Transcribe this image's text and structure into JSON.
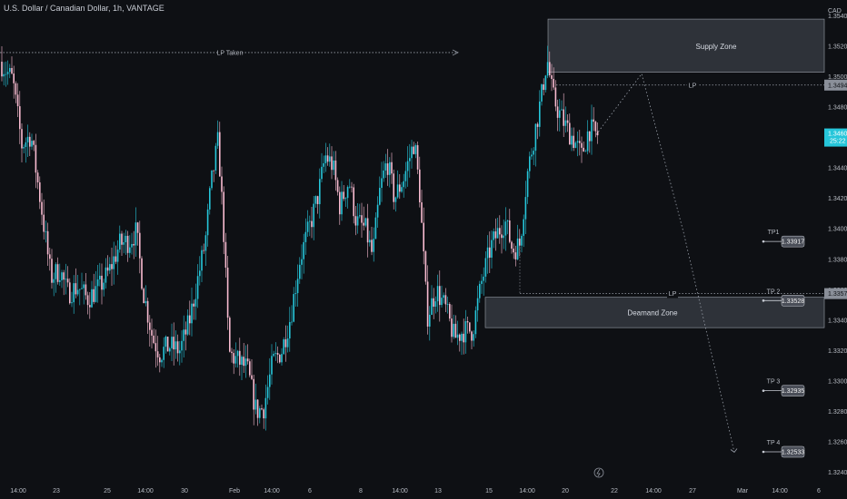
{
  "header": {
    "symbol": "U.S. Dollar / Canadian Dollar, 1h, VANTAGE",
    "currency": "CAD"
  },
  "colors": {
    "background": "#0e1014",
    "up": "#26c6da",
    "down": "#f8bbd0",
    "zone_fill": "#3a3d46",
    "zone_border": "#9aa0aa",
    "dotted": "#9aa0aa",
    "price_tag": "#26c6da",
    "tp_tag": "#4a4e58"
  },
  "chart_data": {
    "type": "candlestick",
    "ylim": [
      1.3233,
      1.3547
    ],
    "y_ticks": [
      "1.35400",
      "1.35200",
      "1.35000",
      "1.34800",
      "1.34400",
      "1.34200",
      "1.34000",
      "1.33800",
      "1.33600",
      "1.33400",
      "1.33200",
      "1.33000",
      "1.32800",
      "1.32600",
      "1.32400"
    ],
    "x_ticks": [
      "14:00",
      "23",
      "25",
      "14:00",
      "30",
      "Feb",
      "14:00",
      "6",
      "8",
      "14:00",
      "13",
      "15",
      "14:00",
      "20",
      "22",
      "14:00",
      "27",
      "Mar",
      "14:00",
      "6"
    ],
    "close_path": [
      [
        0,
        1.351
      ],
      [
        14,
        1.3498
      ],
      [
        24,
        1.3455
      ],
      [
        34,
        1.3462
      ],
      [
        46,
        1.3412
      ],
      [
        56,
        1.3368
      ],
      [
        66,
        1.3373
      ],
      [
        74,
        1.3358
      ],
      [
        86,
        1.3362
      ],
      [
        96,
        1.3354
      ],
      [
        110,
        1.3362
      ],
      [
        120,
        1.3372
      ],
      [
        132,
        1.339
      ],
      [
        142,
        1.3392
      ],
      [
        150,
        1.3398
      ],
      [
        158,
        1.3358
      ],
      [
        168,
        1.3328
      ],
      [
        176,
        1.3318
      ],
      [
        186,
        1.3323
      ],
      [
        198,
        1.332
      ],
      [
        208,
        1.3338
      ],
      [
        218,
        1.3368
      ],
      [
        226,
        1.3392
      ],
      [
        232,
        1.3428
      ],
      [
        240,
        1.3458
      ],
      [
        246,
        1.34
      ],
      [
        252,
        1.3318
      ],
      [
        262,
        1.3313
      ],
      [
        272,
        1.3308
      ],
      [
        282,
        1.328
      ],
      [
        290,
        1.3282
      ],
      [
        300,
        1.3312
      ],
      [
        310,
        1.332
      ],
      [
        320,
        1.3343
      ],
      [
        330,
        1.338
      ],
      [
        340,
        1.34
      ],
      [
        350,
        1.3422
      ],
      [
        358,
        1.3448
      ],
      [
        366,
        1.3442
      ],
      [
        374,
        1.3415
      ],
      [
        384,
        1.3432
      ],
      [
        392,
        1.3405
      ],
      [
        402,
        1.34
      ],
      [
        410,
        1.3382
      ],
      [
        418,
        1.3425
      ],
      [
        426,
        1.3445
      ],
      [
        434,
        1.342
      ],
      [
        444,
        1.3433
      ],
      [
        456,
        1.3458
      ],
      [
        462,
        1.3422
      ],
      [
        470,
        1.3342
      ],
      [
        480,
        1.336
      ],
      [
        490,
        1.3348
      ],
      [
        500,
        1.3328
      ],
      [
        510,
        1.3333
      ],
      [
        520,
        1.3333
      ],
      [
        530,
        1.3365
      ],
      [
        540,
        1.3388
      ],
      [
        548,
        1.3398
      ],
      [
        556,
        1.3405
      ],
      [
        564,
        1.3386
      ],
      [
        572,
        1.339
      ],
      [
        580,
        1.3435
      ],
      [
        588,
        1.3462
      ],
      [
        596,
        1.3488
      ],
      [
        602,
        1.3512
      ],
      [
        608,
        1.3488
      ],
      [
        614,
        1.3478
      ],
      [
        622,
        1.3468
      ],
      [
        632,
        1.3458
      ],
      [
        640,
        1.3448
      ],
      [
        648,
        1.3466
      ],
      [
        656,
        1.3462
      ]
    ],
    "projection_path": [
      [
        656,
        1.3462
      ],
      [
        706,
        1.3502
      ],
      [
        752,
        1.3398
      ],
      [
        808,
        1.3253
      ]
    ],
    "annotations": {
      "lp_taken": "LP Taken",
      "supply_zone": "Supply Zone",
      "demand_zone": "Deamand Zone",
      "lp_upper": "LP",
      "lp_lower": "LP",
      "lp_upper_price": "1.34946",
      "lp_lower_price": "1.33574",
      "current_price": "1.34601",
      "countdown": "25:22"
    },
    "targets": [
      {
        "label": "TP1",
        "value": "1.33917"
      },
      {
        "label": "TP 2",
        "value": "1.33528"
      },
      {
        "label": "TP 3",
        "value": "1.32935"
      },
      {
        "label": "TP 4",
        "value": "1.32533"
      }
    ]
  }
}
